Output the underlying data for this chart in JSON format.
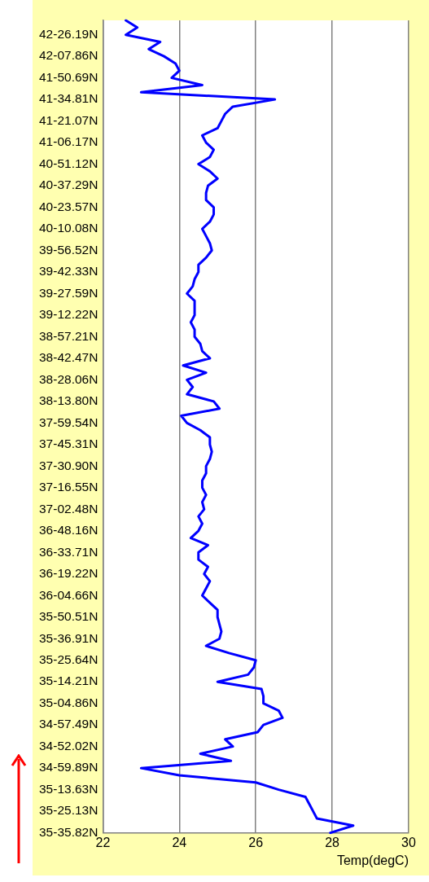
{
  "chart_data": {
    "type": "line",
    "orientation": "horizontal",
    "xlabel": "Temp(degC)",
    "categories": [
      null,
      null,
      "42-26.19N",
      null,
      null,
      "42-07.86N",
      null,
      null,
      "41-50.69N",
      null,
      null,
      "41-34.81N",
      null,
      null,
      "41-21.07N",
      null,
      null,
      "41-06.17N",
      null,
      null,
      "40-51.12N",
      null,
      null,
      "40-37.29N",
      null,
      null,
      "40-23.57N",
      null,
      null,
      "40-10.08N",
      null,
      null,
      "39-56.52N",
      null,
      null,
      "39-42.33N",
      null,
      null,
      "39-27.59N",
      null,
      null,
      "39-12.22N",
      null,
      null,
      "38-57.21N",
      null,
      null,
      "38-42.47N",
      null,
      null,
      "38-28.06N",
      null,
      null,
      "38-13.80N",
      null,
      null,
      "37-59.54N",
      null,
      null,
      "37-45.31N",
      null,
      null,
      "37-30.90N",
      null,
      null,
      "37-16.55N",
      null,
      null,
      "37-02.48N",
      null,
      null,
      "36-48.16N",
      null,
      null,
      "36-33.71N",
      null,
      null,
      "36-19.22N",
      null,
      null,
      "36-04.66N",
      null,
      null,
      "35-50.51N",
      null,
      null,
      "35-36.91N",
      null,
      null,
      "35-25.64N",
      null,
      null,
      "35-14.21N",
      null,
      null,
      "35-04.86N",
      null,
      null,
      "34-57.49N",
      null,
      null,
      "34-52.02N",
      null,
      null,
      "34-59.89N",
      null,
      null,
      "35-13.63N",
      null,
      null,
      "35-25.13N",
      null,
      null,
      "35-35.82N"
    ],
    "values": [
      22.6,
      22.9,
      22.6,
      23.5,
      23.2,
      23.6,
      23.9,
      24.0,
      23.8,
      24.6,
      23.0,
      26.5,
      25.4,
      25.2,
      25.1,
      25.0,
      24.6,
      24.7,
      24.9,
      24.8,
      24.5,
      24.8,
      25.0,
      24.75,
      24.7,
      24.7,
      24.9,
      24.9,
      24.8,
      24.6,
      24.7,
      24.8,
      24.85,
      24.7,
      24.5,
      24.5,
      24.4,
      24.35,
      24.2,
      24.4,
      24.4,
      24.4,
      24.3,
      24.4,
      24.4,
      24.55,
      24.6,
      24.8,
      24.1,
      24.7,
      24.2,
      24.35,
      24.2,
      24.9,
      25.05,
      24.05,
      24.2,
      24.55,
      24.8,
      24.8,
      24.85,
      24.8,
      24.7,
      24.7,
      24.6,
      24.6,
      24.7,
      24.6,
      24.65,
      24.5,
      24.6,
      24.5,
      24.3,
      24.75,
      24.5,
      24.5,
      24.75,
      24.65,
      24.8,
      24.7,
      24.6,
      24.8,
      25.0,
      25.0,
      25.05,
      25.1,
      25.05,
      24.7,
      25.3,
      26.0,
      25.95,
      25.8,
      25.0,
      26.15,
      26.2,
      26.2,
      26.6,
      26.7,
      26.2,
      26.05,
      25.2,
      25.4,
      24.55,
      25.35,
      23.0,
      24.0,
      26.0,
      26.6,
      27.3,
      27.4,
      27.5,
      27.6,
      28.55,
      27.95
    ],
    "color": "#0000ff",
    "xlim": [
      22,
      30
    ],
    "xticks": [
      22,
      24,
      26,
      28,
      30
    ],
    "grid": "x",
    "marker": "none",
    "line_style": "solid"
  }
}
